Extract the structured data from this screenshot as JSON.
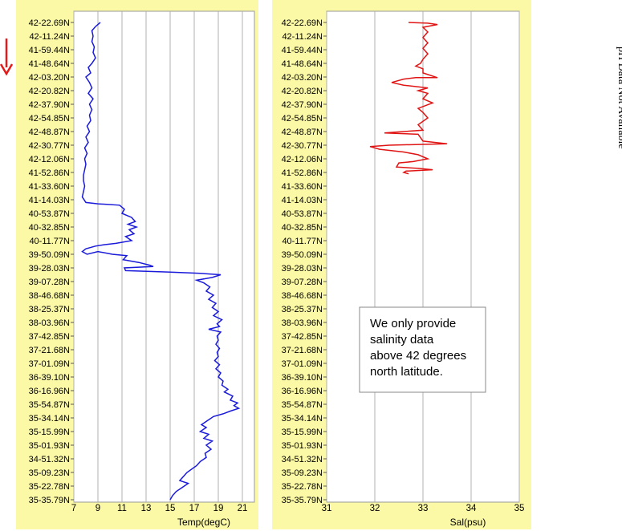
{
  "latitude_labels": [
    "42-22.69N",
    "42-11.24N",
    "41-59.44N",
    "41-48.64N",
    "42-03.20N",
    "42-20.82N",
    "42-37.90N",
    "42-54.85N",
    "42-48.87N",
    "42-30.77N",
    "42-12.06N",
    "41-52.86N",
    "41-33.60N",
    "41-14.03N",
    "40-53.87N",
    "40-32.85N",
    "40-11.77N",
    "39-50.09N",
    "39-28.03N",
    "39-07.28N",
    "38-46.68N",
    "38-25.37N",
    "38-03.96N",
    "37-42.85N",
    "37-21.68N",
    "37-01.09N",
    "36-39.10N",
    "36-16.96N",
    "35-54.87N",
    "35-34.14N",
    "35-15.99N",
    "35-01.93N",
    "34-51.32N",
    "35-09.23N",
    "35-22.78N",
    "35-35.79N"
  ],
  "colors": {
    "panel_bg": "#fbf9a6",
    "temp_line": "#1a1adb",
    "sal_line": "#e01414",
    "arrow": "#e31a1a",
    "grid": "#b0b0b0"
  },
  "chart_data": [
    {
      "type": "line",
      "xlabel": "Temp(degC)",
      "ylabel": "",
      "xlim": [
        7,
        22
      ],
      "xticks": [
        "7",
        "9",
        "11",
        "13",
        "15",
        "17",
        "19",
        "21"
      ],
      "grid": "vertical",
      "orientation": "profile",
      "series": [
        {
          "values": [
            [
              9.2,
              0
            ],
            [
              8.8,
              0.3
            ],
            [
              8.5,
              0.6
            ],
            [
              8.6,
              1.0
            ],
            [
              8.5,
              1.4
            ],
            [
              8.7,
              1.8
            ],
            [
              8.6,
              2.2
            ],
            [
              8.8,
              2.6
            ],
            [
              8.5,
              3.0
            ],
            [
              8.2,
              3.3
            ],
            [
              8.4,
              3.7
            ],
            [
              8.0,
              4.0
            ],
            [
              8.3,
              4.4
            ],
            [
              8.5,
              4.8
            ],
            [
              8.2,
              5.2
            ],
            [
              8.6,
              5.6
            ],
            [
              8.3,
              6.0
            ],
            [
              8.5,
              6.4
            ],
            [
              8.3,
              6.8
            ],
            [
              8.4,
              7.2
            ],
            [
              8.1,
              7.6
            ],
            [
              8.3,
              8.0
            ],
            [
              8.0,
              8.4
            ],
            [
              8.2,
              8.8
            ],
            [
              7.9,
              9.2
            ],
            [
              8.1,
              9.6
            ],
            [
              7.9,
              10.0
            ],
            [
              8.0,
              10.4
            ],
            [
              7.9,
              10.8
            ],
            [
              7.8,
              11.2
            ],
            [
              7.8,
              11.6
            ],
            [
              7.9,
              12.0
            ],
            [
              7.8,
              12.4
            ],
            [
              7.7,
              12.8
            ],
            [
              8.0,
              13.2
            ],
            [
              9.0,
              13.3
            ],
            [
              10.8,
              13.4
            ],
            [
              11.2,
              13.7
            ],
            [
              11.0,
              14.0
            ],
            [
              11.8,
              14.3
            ],
            [
              12.1,
              14.6
            ],
            [
              11.5,
              14.8
            ],
            [
              12.2,
              15.0
            ],
            [
              11.6,
              15.2
            ],
            [
              12.0,
              15.5
            ],
            [
              11.3,
              15.7
            ],
            [
              11.8,
              16.0
            ],
            [
              10.5,
              16.2
            ],
            [
              9.5,
              16.3
            ],
            [
              8.8,
              16.4
            ],
            [
              8.0,
              16.6
            ],
            [
              7.7,
              16.8
            ],
            [
              8.1,
              17.0
            ],
            [
              9.0,
              16.8
            ],
            [
              10.2,
              17.0
            ],
            [
              11.4,
              17.1
            ],
            [
              11.1,
              17.4
            ],
            [
              12.4,
              17.6
            ],
            [
              13.3,
              17.8
            ],
            [
              13.6,
              17.9
            ],
            [
              11.2,
              18.0
            ],
            [
              11.3,
              18.2
            ],
            [
              14.8,
              18.3
            ],
            [
              17.5,
              18.4
            ],
            [
              19.2,
              18.5
            ],
            [
              18.5,
              18.7
            ],
            [
              17.2,
              18.9
            ],
            [
              17.8,
              19.1
            ],
            [
              18.3,
              19.4
            ],
            [
              18.0,
              19.7
            ],
            [
              18.6,
              20.0
            ],
            [
              18.2,
              20.3
            ],
            [
              18.8,
              20.6
            ],
            [
              18.5,
              20.9
            ],
            [
              19.0,
              21.2
            ],
            [
              18.6,
              21.5
            ],
            [
              19.3,
              21.8
            ],
            [
              18.9,
              22.1
            ],
            [
              19.1,
              22.3
            ],
            [
              18.2,
              22.5
            ],
            [
              19.2,
              22.7
            ],
            [
              18.9,
              23.0
            ],
            [
              19.0,
              23.3
            ],
            [
              18.8,
              23.6
            ],
            [
              19.1,
              23.9
            ],
            [
              18.9,
              24.2
            ],
            [
              19.0,
              24.5
            ],
            [
              18.7,
              24.8
            ],
            [
              19.1,
              25.1
            ],
            [
              18.8,
              25.4
            ],
            [
              19.2,
              25.7
            ],
            [
              19.0,
              26.0
            ],
            [
              19.4,
              26.3
            ],
            [
              19.3,
              26.6
            ],
            [
              19.8,
              26.9
            ],
            [
              19.5,
              27.1
            ],
            [
              20.2,
              27.4
            ],
            [
              20.0,
              27.7
            ],
            [
              20.6,
              27.9
            ],
            [
              20.3,
              28.1
            ],
            [
              20.7,
              28.3
            ],
            [
              20.0,
              28.5
            ],
            [
              19.4,
              28.7
            ],
            [
              18.6,
              28.9
            ],
            [
              18.1,
              29.2
            ],
            [
              17.6,
              29.5
            ],
            [
              18.0,
              29.7
            ],
            [
              17.5,
              30.0
            ],
            [
              18.2,
              30.2
            ],
            [
              17.8,
              30.5
            ],
            [
              18.5,
              30.7
            ],
            [
              18.0,
              31.0
            ],
            [
              18.4,
              31.3
            ],
            [
              17.9,
              31.6
            ],
            [
              18.0,
              31.9
            ],
            [
              17.5,
              32.2
            ],
            [
              17.2,
              32.5
            ],
            [
              16.4,
              33.0
            ],
            [
              16.0,
              33.4
            ],
            [
              15.8,
              33.6
            ],
            [
              16.5,
              33.8
            ],
            [
              16.0,
              34.1
            ],
            [
              15.5,
              34.4
            ],
            [
              15.2,
              34.7
            ],
            [
              15.0,
              35.0
            ]
          ]
        }
      ]
    },
    {
      "type": "line",
      "xlabel": "Sal(psu)",
      "ylabel": "",
      "xlim": [
        31,
        35
      ],
      "xticks": [
        "31",
        "32",
        "33",
        "34",
        "35"
      ],
      "grid": "vertical",
      "orientation": "profile",
      "series": [
        {
          "values": [
            [
              32.7,
              0
            ],
            [
              33.1,
              0.05
            ],
            [
              33.3,
              0.15
            ],
            [
              33.0,
              0.35
            ],
            [
              33.1,
              0.7
            ],
            [
              33.0,
              1.1
            ],
            [
              33.1,
              1.5
            ],
            [
              33.0,
              1.9
            ],
            [
              33.1,
              2.3
            ],
            [
              33.0,
              2.7
            ],
            [
              32.95,
              3.0
            ],
            [
              32.85,
              3.2
            ],
            [
              33.0,
              3.4
            ],
            [
              33.0,
              3.7
            ],
            [
              33.3,
              4.05
            ],
            [
              32.85,
              4.05
            ],
            [
              32.6,
              4.15
            ],
            [
              32.35,
              4.4
            ],
            [
              32.6,
              4.6
            ],
            [
              33.1,
              4.8
            ],
            [
              32.9,
              5.0
            ],
            [
              33.1,
              5.2
            ],
            [
              33.0,
              5.6
            ],
            [
              33.2,
              5.9
            ],
            [
              32.9,
              6.3
            ],
            [
              33.0,
              6.6
            ],
            [
              33.1,
              7.0
            ],
            [
              32.9,
              7.5
            ],
            [
              33.0,
              7.9
            ],
            [
              32.6,
              8.0
            ],
            [
              32.2,
              8.1
            ],
            [
              32.9,
              8.2
            ],
            [
              33.0,
              8.7
            ],
            [
              33.5,
              8.9
            ],
            [
              32.3,
              9.0
            ],
            [
              31.9,
              9.1
            ],
            [
              32.1,
              9.3
            ],
            [
              32.6,
              9.5
            ],
            [
              32.9,
              9.7
            ],
            [
              33.1,
              10.0
            ],
            [
              32.8,
              10.2
            ],
            [
              32.5,
              10.3
            ],
            [
              32.45,
              10.6
            ],
            [
              32.9,
              10.7
            ],
            [
              33.2,
              10.8
            ],
            [
              32.65,
              10.9
            ],
            [
              32.6,
              11.0
            ],
            [
              32.7,
              11.1
            ]
          ]
        }
      ]
    }
  ],
  "note": "We only provide salinity data above 42 degrees north latitude.",
  "side_text": "pH Data Not Available"
}
